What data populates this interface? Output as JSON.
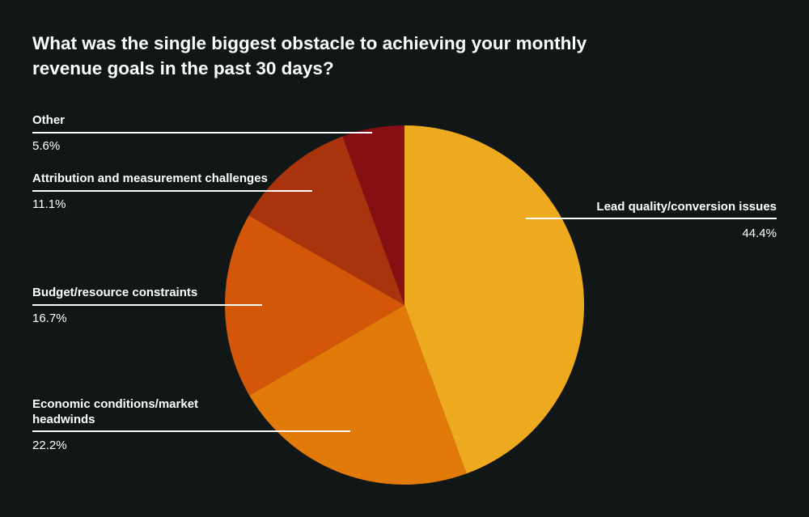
{
  "chart_data": {
    "type": "pie",
    "title": "What was the single biggest obstacle to achieving your monthly revenue goals in the past 30 days?",
    "slices": [
      {
        "label": "Lead quality/conversion issues",
        "value": 44.4,
        "value_label": "44.4%",
        "color": "#EEAA1E"
      },
      {
        "label": "Economic conditions/market headwinds",
        "value": 22.2,
        "value_label": "22.2%",
        "color": "#E27A0A"
      },
      {
        "label": "Budget/resource constraints",
        "value": 16.7,
        "value_label": "16.7%",
        "color": "#D45608"
      },
      {
        "label": "Attribution and measurement challenges",
        "value": 11.1,
        "value_label": "11.1%",
        "color": "#A8330C"
      },
      {
        "label": "Other",
        "value": 5.6,
        "value_label": "5.6%",
        "color": "#860F14"
      }
    ],
    "legend": "callouts"
  }
}
